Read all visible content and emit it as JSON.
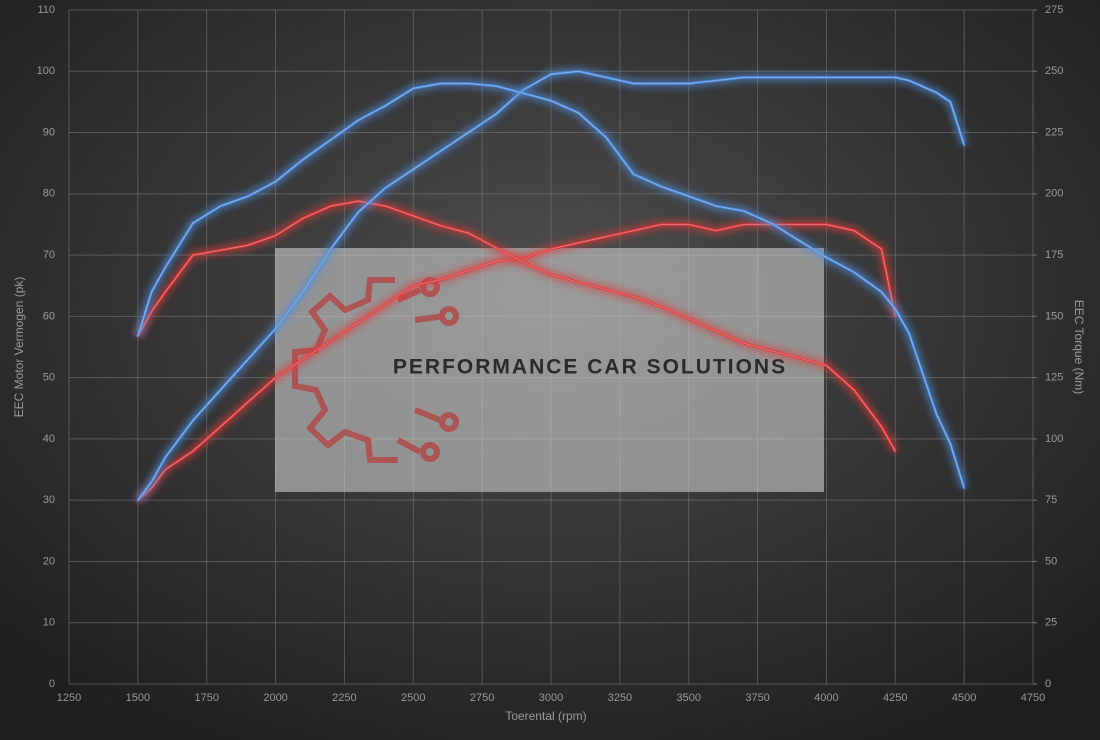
{
  "chart_data": {
    "type": "line",
    "xlabel": "Toerental (rpm)",
    "ylabel": "EEC Motor Vermogen (pk)",
    "y2label": "EEC Torque (Nm)",
    "watermark": "PERFORMANCE CAR SOLUTIONS",
    "x": [
      1500,
      1550,
      1600,
      1700,
      1800,
      1900,
      2000,
      2100,
      2200,
      2300,
      2400,
      2500,
      2600,
      2700,
      2800,
      2900,
      3000,
      3100,
      3200,
      3300,
      3400,
      3500,
      3600,
      3700,
      3800,
      3900,
      4000,
      4100,
      4200,
      4250,
      4300,
      4400,
      4450,
      4500
    ],
    "series": [
      {
        "color": "#e03a3a",
        "axis": "y",
        "values": [
          30,
          32,
          35,
          38,
          42,
          46,
          50,
          53,
          56,
          59,
          62,
          65,
          66,
          67.5,
          69,
          69.5,
          71,
          72,
          73,
          74,
          75,
          75,
          74,
          75,
          75,
          75,
          75,
          74,
          71,
          60,
          null,
          null,
          null,
          null
        ]
      },
      {
        "color": "#e03a3a",
        "axis": "y2",
        "values": [
          142,
          152,
          160,
          175,
          177,
          179,
          183,
          190,
          195,
          197,
          195,
          191,
          187,
          184,
          178,
          172,
          167,
          164,
          161,
          158,
          154,
          149,
          144,
          139,
          136,
          133,
          130,
          120,
          105,
          95,
          null,
          null,
          null,
          null
        ]
      },
      {
        "color": "#4f8fe0",
        "axis": "y",
        "values": [
          30,
          33,
          37,
          43,
          48,
          53,
          58,
          64,
          71,
          77,
          81,
          84,
          87,
          90,
          93,
          97,
          99.5,
          100,
          99,
          98,
          98,
          98,
          98.5,
          99,
          99,
          99,
          99,
          99,
          99,
          99,
          98.5,
          96.5,
          95,
          88
        ]
      },
      {
        "color": "#4f8fe0",
        "axis": "y2",
        "values": [
          142,
          160,
          170,
          188,
          195,
          199,
          205,
          214,
          222,
          230,
          236,
          243,
          245,
          245,
          244,
          241,
          238,
          233,
          223,
          208,
          203,
          199,
          195,
          193,
          188,
          181,
          174,
          168,
          160,
          153,
          143,
          110,
          98,
          80
        ]
      }
    ],
    "xlim": [
      1250,
      4750
    ],
    "xticks": [
      1250,
      1500,
      1750,
      2000,
      2250,
      2500,
      2750,
      3000,
      3250,
      3500,
      3750,
      4000,
      4250,
      4500,
      4750
    ],
    "ylim": [
      0,
      110
    ],
    "yticks": [
      0,
      10,
      20,
      30,
      40,
      50,
      60,
      70,
      80,
      90,
      100,
      110
    ],
    "y2lim": [
      0,
      275
    ],
    "y2ticks": [
      0,
      25,
      50,
      75,
      100,
      125,
      150,
      175,
      200,
      225,
      250,
      275
    ],
    "grid": true
  }
}
